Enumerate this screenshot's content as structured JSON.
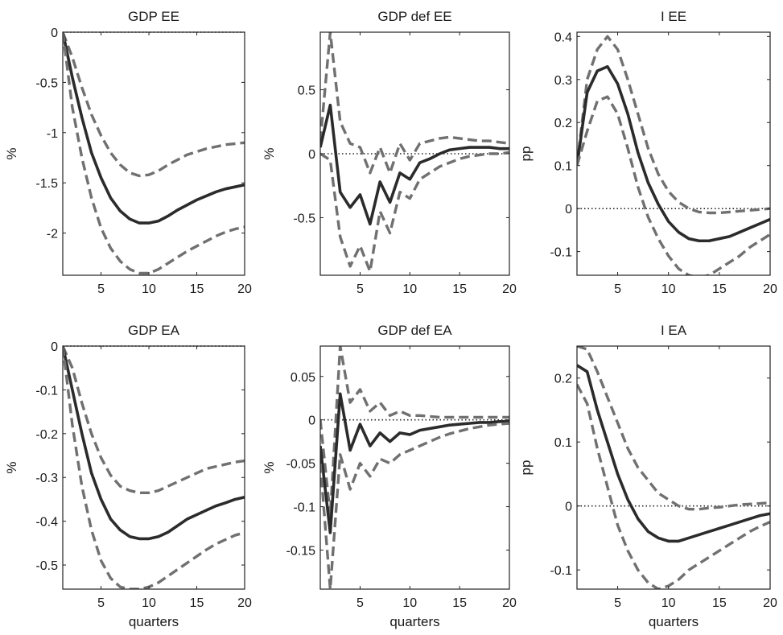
{
  "chart_data": [
    {
      "type": "line",
      "title": "GDP EE",
      "xlabel": "",
      "ylabel": "%",
      "xlim": [
        1,
        20
      ],
      "ylim": [
        -2.42,
        0
      ],
      "xticks": [
        5,
        10,
        15,
        20
      ],
      "yticks": [
        0,
        -0.5,
        -1,
        -1.5,
        -2
      ],
      "ytick_labels": [
        "0",
        "-0.5",
        "-1",
        "-1.5",
        "-2"
      ],
      "zero_line": true,
      "x": [
        1,
        2,
        3,
        4,
        5,
        6,
        7,
        8,
        9,
        10,
        11,
        12,
        13,
        14,
        15,
        16,
        17,
        18,
        19,
        20
      ],
      "series": [
        {
          "role": "upper",
          "values": [
            0,
            -0.25,
            -0.55,
            -0.82,
            -1.03,
            -1.2,
            -1.32,
            -1.4,
            -1.43,
            -1.42,
            -1.38,
            -1.32,
            -1.27,
            -1.22,
            -1.19,
            -1.16,
            -1.14,
            -1.12,
            -1.11,
            -1.1
          ]
        },
        {
          "role": "median",
          "values": [
            0,
            -0.45,
            -0.85,
            -1.2,
            -1.45,
            -1.65,
            -1.78,
            -1.86,
            -1.9,
            -1.9,
            -1.88,
            -1.83,
            -1.77,
            -1.72,
            -1.67,
            -1.63,
            -1.59,
            -1.56,
            -1.54,
            -1.52
          ]
        },
        {
          "role": "lower",
          "values": [
            0,
            -0.75,
            -1.25,
            -1.65,
            -1.95,
            -2.15,
            -2.28,
            -2.36,
            -2.4,
            -2.4,
            -2.36,
            -2.3,
            -2.24,
            -2.18,
            -2.13,
            -2.08,
            -2.03,
            -1.99,
            -1.96,
            -1.94
          ]
        }
      ]
    },
    {
      "type": "line",
      "title": "GDP def EE",
      "xlabel": "",
      "ylabel": "%",
      "xlim": [
        1,
        20
      ],
      "ylim": [
        -0.95,
        0.95
      ],
      "xticks": [
        5,
        10,
        15,
        20
      ],
      "yticks": [
        0.5,
        0,
        -0.5
      ],
      "ytick_labels": [
        "0.5",
        "0",
        "-0.5"
      ],
      "zero_line": true,
      "x": [
        1,
        2,
        3,
        4,
        5,
        6,
        7,
        8,
        9,
        10,
        11,
        12,
        13,
        14,
        15,
        16,
        17,
        18,
        19,
        20
      ],
      "series": [
        {
          "role": "upper",
          "values": [
            0.1,
            0.95,
            0.25,
            0.08,
            0.05,
            -0.15,
            0.05,
            -0.15,
            0.08,
            -0.05,
            0.08,
            0.1,
            0.12,
            0.13,
            0.12,
            0.11,
            0.1,
            0.1,
            0.09,
            0.08
          ]
        },
        {
          "role": "median",
          "values": [
            0.05,
            0.38,
            -0.3,
            -0.42,
            -0.32,
            -0.55,
            -0.22,
            -0.38,
            -0.15,
            -0.2,
            -0.07,
            -0.04,
            0,
            0.03,
            0.04,
            0.05,
            0.05,
            0.05,
            0.04,
            0.04
          ]
        },
        {
          "role": "lower",
          "values": [
            0,
            -0.05,
            -0.65,
            -0.88,
            -0.72,
            -0.92,
            -0.45,
            -0.62,
            -0.3,
            -0.35,
            -0.2,
            -0.15,
            -0.1,
            -0.07,
            -0.04,
            -0.02,
            -0.01,
            0,
            0,
            0.01
          ]
        }
      ]
    },
    {
      "type": "line",
      "title": "I EE",
      "xlabel": "",
      "ylabel": "pp",
      "xlim": [
        1,
        20
      ],
      "ylim": [
        -0.155,
        0.41
      ],
      "xticks": [
        5,
        10,
        15,
        20
      ],
      "yticks": [
        0.4,
        0.3,
        0.2,
        0.1,
        0,
        -0.1
      ],
      "ytick_labels": [
        "0.4",
        "0.3",
        "0.2",
        "0.1",
        "0",
        "-0.1"
      ],
      "zero_line": true,
      "x": [
        1,
        2,
        3,
        4,
        5,
        6,
        7,
        8,
        9,
        10,
        11,
        12,
        13,
        14,
        15,
        16,
        17,
        18,
        19,
        20
      ],
      "series": [
        {
          "role": "upper",
          "values": [
            0.1,
            0.3,
            0.37,
            0.4,
            0.37,
            0.3,
            0.22,
            0.14,
            0.08,
            0.04,
            0.015,
            0,
            -0.008,
            -0.01,
            -0.01,
            -0.008,
            -0.006,
            -0.004,
            -0.002,
            0
          ]
        },
        {
          "role": "median",
          "values": [
            0.1,
            0.27,
            0.32,
            0.33,
            0.29,
            0.22,
            0.13,
            0.06,
            0.01,
            -0.03,
            -0.055,
            -0.07,
            -0.075,
            -0.075,
            -0.07,
            -0.065,
            -0.055,
            -0.045,
            -0.035,
            -0.025
          ]
        },
        {
          "role": "lower",
          "values": [
            0.1,
            0.18,
            0.25,
            0.26,
            0.22,
            0.14,
            0.05,
            -0.02,
            -0.07,
            -0.11,
            -0.14,
            -0.155,
            -0.16,
            -0.155,
            -0.14,
            -0.125,
            -0.11,
            -0.09,
            -0.075,
            -0.06
          ]
        }
      ]
    },
    {
      "type": "line",
      "title": "GDP EA",
      "xlabel": "quarters",
      "ylabel": "%",
      "xlim": [
        1,
        20
      ],
      "ylim": [
        -0.555,
        0
      ],
      "xticks": [
        5,
        10,
        15,
        20
      ],
      "yticks": [
        0,
        -0.1,
        -0.2,
        -0.3,
        -0.4,
        -0.5
      ],
      "ytick_labels": [
        "0",
        "-0.1",
        "-0.2",
        "-0.3",
        "-0.4",
        "-0.5"
      ],
      "zero_line": true,
      "x": [
        1,
        2,
        3,
        4,
        5,
        6,
        7,
        8,
        9,
        10,
        11,
        12,
        13,
        14,
        15,
        16,
        17,
        18,
        19,
        20
      ],
      "series": [
        {
          "role": "upper",
          "values": [
            0,
            -0.05,
            -0.13,
            -0.2,
            -0.255,
            -0.295,
            -0.32,
            -0.33,
            -0.335,
            -0.335,
            -0.33,
            -0.32,
            -0.31,
            -0.3,
            -0.29,
            -0.28,
            -0.275,
            -0.27,
            -0.265,
            -0.262
          ]
        },
        {
          "role": "median",
          "values": [
            0,
            -0.1,
            -0.2,
            -0.29,
            -0.35,
            -0.395,
            -0.42,
            -0.435,
            -0.44,
            -0.44,
            -0.435,
            -0.425,
            -0.41,
            -0.395,
            -0.385,
            -0.375,
            -0.365,
            -0.358,
            -0.35,
            -0.345
          ]
        },
        {
          "role": "lower",
          "values": [
            0,
            -0.18,
            -0.32,
            -0.42,
            -0.49,
            -0.53,
            -0.55,
            -0.555,
            -0.555,
            -0.55,
            -0.54,
            -0.525,
            -0.51,
            -0.495,
            -0.48,
            -0.465,
            -0.452,
            -0.442,
            -0.432,
            -0.426
          ]
        }
      ]
    },
    {
      "type": "line",
      "title": "GDP def EA",
      "xlabel": "quarters",
      "ylabel": "%",
      "xlim": [
        1,
        20
      ],
      "ylim": [
        -0.195,
        0.085
      ],
      "xticks": [
        5,
        10,
        15,
        20
      ],
      "yticks": [
        0.05,
        0,
        -0.05,
        -0.1,
        -0.15
      ],
      "ytick_labels": [
        "0.05",
        "0",
        "-0.05",
        "-0.1",
        "-0.15"
      ],
      "zero_line": true,
      "x": [
        1,
        2,
        3,
        4,
        5,
        6,
        7,
        8,
        9,
        10,
        11,
        12,
        13,
        14,
        15,
        16,
        17,
        18,
        19,
        20
      ],
      "series": [
        {
          "role": "upper",
          "values": [
            0,
            -0.11,
            0.085,
            0.02,
            0.035,
            0.01,
            0.02,
            0.005,
            0.01,
            0.005,
            0.005,
            0.004,
            0.003,
            0.003,
            0.003,
            0.003,
            0.003,
            0.003,
            0.003,
            0.003
          ]
        },
        {
          "role": "median",
          "values": [
            -0.03,
            -0.13,
            0.03,
            -0.035,
            -0.005,
            -0.03,
            -0.015,
            -0.025,
            -0.015,
            -0.017,
            -0.012,
            -0.01,
            -0.008,
            -0.006,
            -0.005,
            -0.004,
            -0.003,
            -0.003,
            -0.002,
            -0.002
          ]
        },
        {
          "role": "lower",
          "values": [
            -0.05,
            -0.195,
            -0.04,
            -0.08,
            -0.05,
            -0.065,
            -0.045,
            -0.05,
            -0.04,
            -0.035,
            -0.03,
            -0.025,
            -0.02,
            -0.016,
            -0.013,
            -0.01,
            -0.008,
            -0.006,
            -0.005,
            -0.004
          ]
        }
      ]
    },
    {
      "type": "line",
      "title": "I EA",
      "xlabel": "quarters",
      "ylabel": "pp",
      "xlim": [
        1,
        20
      ],
      "ylim": [
        -0.13,
        0.25
      ],
      "xticks": [
        5,
        10,
        15,
        20
      ],
      "yticks": [
        0.2,
        0.1,
        0,
        -0.1
      ],
      "ytick_labels": [
        "0.2",
        "0.1",
        "0",
        "-0.1"
      ],
      "zero_line": true,
      "x": [
        1,
        2,
        3,
        4,
        5,
        6,
        7,
        8,
        9,
        10,
        11,
        12,
        13,
        14,
        15,
        16,
        17,
        18,
        19,
        20
      ],
      "series": [
        {
          "role": "upper",
          "values": [
            0.25,
            0.245,
            0.21,
            0.17,
            0.13,
            0.09,
            0.06,
            0.04,
            0.02,
            0.01,
            0,
            -0.005,
            -0.005,
            -0.003,
            -0.002,
            0,
            0.002,
            0.003,
            0.004,
            0.005
          ]
        },
        {
          "role": "median",
          "values": [
            0.22,
            0.21,
            0.15,
            0.1,
            0.05,
            0.01,
            -0.02,
            -0.04,
            -0.05,
            -0.055,
            -0.055,
            -0.05,
            -0.045,
            -0.04,
            -0.035,
            -0.03,
            -0.025,
            -0.02,
            -0.015,
            -0.012
          ]
        },
        {
          "role": "lower",
          "values": [
            0.19,
            0.16,
            0.09,
            0.03,
            -0.03,
            -0.07,
            -0.1,
            -0.12,
            -0.13,
            -0.125,
            -0.115,
            -0.1,
            -0.09,
            -0.08,
            -0.07,
            -0.06,
            -0.05,
            -0.04,
            -0.032,
            -0.025
          ]
        }
      ]
    }
  ]
}
